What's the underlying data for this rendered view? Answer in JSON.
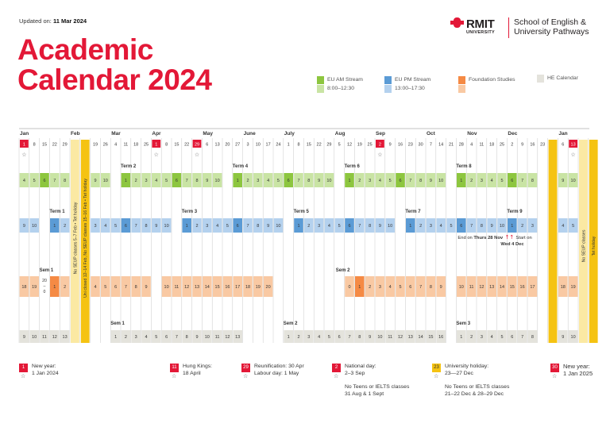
{
  "updated": {
    "label": "Updated on:",
    "date": "11 Mar 2024"
  },
  "title": {
    "line1": "Academic",
    "line2": "Calendar 2024"
  },
  "logo": {
    "name": "RMIT",
    "sub": "UNIVERSITY",
    "school_line1": "School of English &",
    "school_line2": "University Pathways"
  },
  "legend": [
    {
      "label": "EU AM Stream",
      "time": "8:00–12:30",
      "color1": "#8dc63f",
      "color2": "#c9e4a4"
    },
    {
      "label": "EU PM Stream",
      "time": "13:00–17:30",
      "color1": "#5b9bd5",
      "color2": "#b4d1ee"
    },
    {
      "label": "Foundation Studies",
      "time": "",
      "color1": "#f58a44",
      "color2": "#f9c9a3"
    },
    {
      "label": "HE Calendar",
      "time": "",
      "color1": "#e4e3dc",
      "color2": ""
    }
  ],
  "colors": {
    "red": "#e31837",
    "yellow": "#f5c312",
    "am": "#8dc63f",
    "am_light": "#c9e4a4",
    "pm": "#5b9bd5",
    "pm_light": "#b4d1ee",
    "fs": "#f58a44",
    "fs_light": "#f9c9a3",
    "he": "#e4e3dc"
  },
  "months": [
    "Jan",
    "Feb",
    "Mar",
    "Apr",
    "May",
    "June",
    "July",
    "Aug",
    "Sep",
    "Oct",
    "Nov",
    "Dec",
    "Jan"
  ],
  "week_dates": [
    "1",
    "8",
    "15",
    "22",
    "29",
    "5",
    "12",
    "19",
    "26",
    "4",
    "11",
    "18",
    "25",
    "1",
    "8",
    "15",
    "22",
    "29",
    "6",
    "13",
    "20",
    "27",
    "3",
    "10",
    "17",
    "24",
    "1",
    "8",
    "15",
    "22",
    "29",
    "5",
    "12",
    "19",
    "25",
    "2",
    "9",
    "16",
    "23",
    "30",
    "7",
    "14",
    "21",
    "28",
    "4",
    "11",
    "18",
    "25",
    "2",
    "9",
    "16",
    "23",
    "30",
    "6",
    "13",
    "27"
  ],
  "am_rows": {
    "pre": [
      "4",
      "5",
      "6",
      "7",
      "8"
    ],
    "t2_pre": [
      "9",
      "10"
    ],
    "t2": [
      "1",
      "2",
      "3",
      "4",
      "5",
      "6",
      "7",
      "8",
      "9",
      "10"
    ],
    "t4": [
      "1",
      "2",
      "3",
      "4",
      "5",
      "6",
      "7",
      "8",
      "9",
      "10"
    ],
    "t6": [
      "1",
      "2",
      "3",
      "4",
      "5",
      "6",
      "7",
      "8",
      "9",
      "10"
    ],
    "t8": [
      "1",
      "2",
      "3",
      "4",
      "5",
      "6",
      "7",
      "8"
    ],
    "post": [
      "9",
      "10"
    ]
  },
  "pm_rows": {
    "pre": [
      "9",
      "10"
    ],
    "t1": [
      "1",
      "2"
    ],
    "t1_post": [
      "3",
      "4",
      "5",
      "6",
      "7",
      "8",
      "9",
      "10"
    ],
    "t3": [
      "1",
      "2",
      "3",
      "4",
      "5",
      "6",
      "7",
      "8",
      "9",
      "10"
    ],
    "t5": [
      "1",
      "2",
      "3",
      "4",
      "5",
      "6",
      "7",
      "8",
      "9",
      "10"
    ],
    "t7": [
      "1",
      "2",
      "3",
      "4",
      "5",
      "6",
      "7",
      "8",
      "9",
      "10"
    ],
    "t9": [
      "1",
      "2",
      "3"
    ],
    "post": [
      "4",
      "5",
      "6"
    ]
  },
  "fs_rows": {
    "pre": [
      "18",
      "19"
    ],
    "s1_note": [
      "20",
      "–",
      "0"
    ],
    "s1": [
      "1",
      "2",
      "3"
    ],
    "s1b": [
      "4",
      "5",
      "6",
      "7",
      "8",
      "9"
    ],
    "s1c": [
      "10",
      "11",
      "12",
      "13",
      "14",
      "15",
      "16",
      "17",
      "18",
      "19",
      "20"
    ],
    "s2": [
      "0",
      "1",
      "2",
      "3",
      "4",
      "5",
      "6",
      "7",
      "8",
      "9"
    ],
    "s2b": [
      "10",
      "11",
      "12",
      "13",
      "14",
      "15",
      "16",
      "17"
    ],
    "post": [
      "18",
      "19",
      "20"
    ]
  },
  "he_rows": {
    "pre": [
      "9",
      "10",
      "11",
      "12",
      "13"
    ],
    "s1": [
      "1",
      "2",
      "3",
      "4",
      "5",
      "6",
      "7",
      "8",
      "9",
      "10",
      "11",
      "12",
      "13"
    ],
    "s2": [
      "1",
      "2",
      "3",
      "4",
      "5",
      "6",
      "7",
      "8",
      "9",
      "10",
      "11",
      "12",
      "13",
      "14",
      "15",
      "16"
    ],
    "s3": [
      "1",
      "2",
      "3",
      "4",
      "5",
      "6",
      "7",
      "8"
    ],
    "post": [
      "9",
      "10",
      "11"
    ]
  },
  "labels": {
    "term1": "Term 1",
    "term2": "Term 2",
    "term3": "Term 3",
    "term4": "Term 4",
    "term5": "Term 5",
    "term6": "Term 6",
    "term7": "Term 7",
    "term8": "Term 8",
    "term9": "Term 9",
    "sem1": "Sem 1",
    "sem2": "Sem 2",
    "he_sem1": "Sem 1",
    "he_sem2": "Sem 2",
    "he_sem3": "Sem 3",
    "feb_v1": "No SEUP classes 5–7 Feb  •  Tet holiday",
    "feb_v2": "Uni closed 12–14 Feb, No SEUP classes 15–16 Feb • Tet holiday",
    "dec_v1": "No SEUP classes",
    "dec_v2": "Tet holiday",
    "t9_note1a": "End on ",
    "t9_note1b": "Thurs 28 Nov",
    "t9_note2a": "Start on",
    "t9_note2b": "Wed 4 Dec"
  },
  "footnotes": [
    {
      "box": "1",
      "color": "#e31837",
      "text": "New year:\n1 Jan 2024",
      "sub": ""
    },
    {
      "box": "11",
      "color": "#e31837",
      "text": "Hung Kings:\n18 April",
      "sub": ""
    },
    {
      "box": "29",
      "color": "#e31837",
      "text": "Reunification: 30 Apr\nLabour day: 1 May",
      "sub": ""
    },
    {
      "box": "2",
      "color": "#e31837",
      "text": "National day:\n2–3 Sep",
      "sub": "No Teens or IELTS classes\n31 Aug & 1 Sept"
    },
    {
      "box": "23",
      "color": "#f5c312",
      "text": "University holiday:\n23—27 Dec",
      "sub": "No Teens or IELTS classes\n21–22 Dec & 28–29 Dec"
    },
    {
      "box": "30",
      "color": "#e31837",
      "text": "New year:\n1 Jan 2025",
      "sub": ""
    }
  ]
}
